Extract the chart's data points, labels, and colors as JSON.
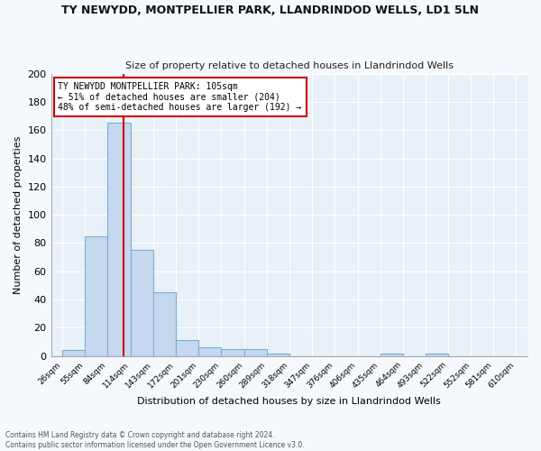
{
  "title": "TY NEWYDD, MONTPELLIER PARK, LLANDRINDOD WELLS, LD1 5LN",
  "subtitle": "Size of property relative to detached houses in Llandrindod Wells",
  "xlabel": "Distribution of detached houses by size in Llandrindod Wells",
  "ylabel": "Number of detached properties",
  "bin_labels": [
    "26sqm",
    "55sqm",
    "84sqm",
    "114sqm",
    "143sqm",
    "172sqm",
    "201sqm",
    "230sqm",
    "260sqm",
    "289sqm",
    "318sqm",
    "347sqm",
    "376sqm",
    "406sqm",
    "435sqm",
    "464sqm",
    "493sqm",
    "522sqm",
    "552sqm",
    "581sqm",
    "610sqm"
  ],
  "bar_values": [
    4,
    85,
    165,
    75,
    45,
    11,
    6,
    5,
    5,
    2,
    0,
    0,
    0,
    0,
    2,
    0,
    2,
    0,
    0,
    0
  ],
  "sqm_vals": [
    26,
    55,
    84,
    114,
    143,
    172,
    201,
    230,
    260,
    289,
    318,
    347,
    376,
    406,
    435,
    464,
    493,
    522,
    552,
    581,
    610
  ],
  "bar_color": "#c5d8ed",
  "bar_edge_color": "#7bafd4",
  "plot_bg_color": "#e8f0f8",
  "fig_bg_color": "#f5f8fc",
  "grid_color": "#ffffff",
  "vline_x": 105,
  "vline_color": "#cc0000",
  "annotation_text": "TY NEWYDD MONTPELLIER PARK: 105sqm\n← 51% of detached houses are smaller (204)\n48% of semi-detached houses are larger (192) →",
  "annotation_box_color": "#ffffff",
  "annotation_box_edge": "#cc0000",
  "footer_text": "Contains HM Land Registry data © Crown copyright and database right 2024.\nContains public sector information licensed under the Open Government Licence v3.0.",
  "ylim": [
    0,
    200
  ],
  "yticks": [
    0,
    20,
    40,
    60,
    80,
    100,
    120,
    140,
    160,
    180,
    200
  ]
}
